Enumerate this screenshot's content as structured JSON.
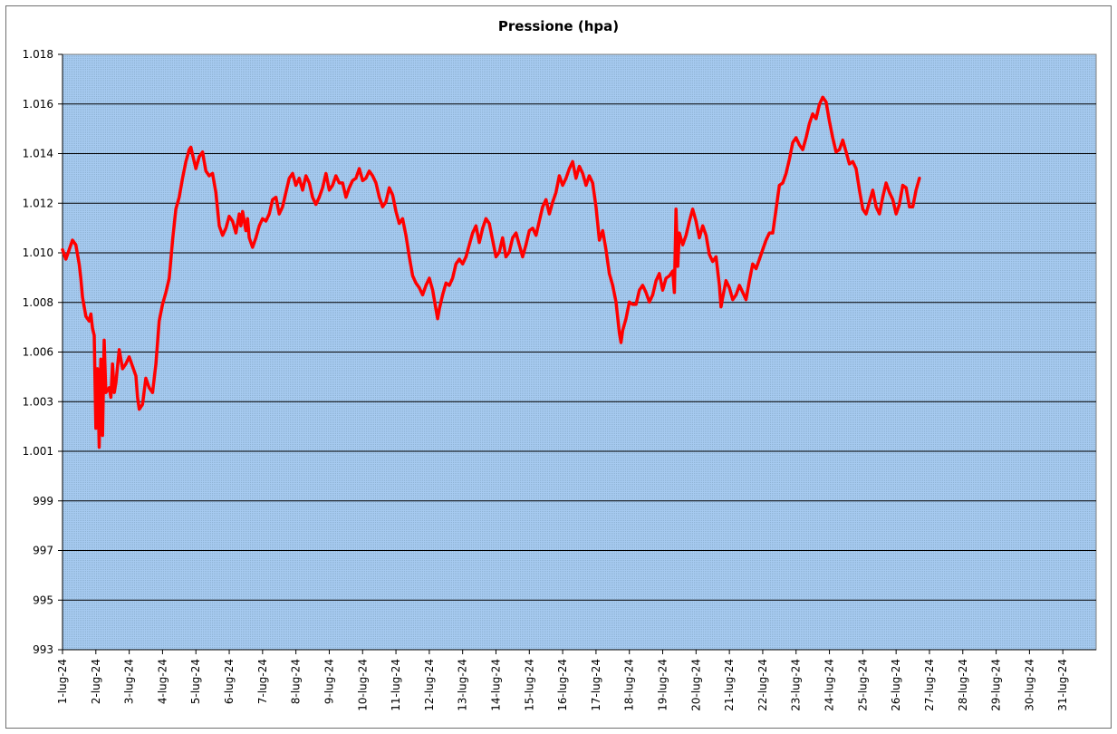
{
  "chart_data": {
    "type": "line",
    "title": "Pressione (hpa)",
    "xlabel": "",
    "ylabel": "",
    "ylim": [
      993,
      1018
    ],
    "y_ticks": [
      "993",
      "995",
      "997",
      "999",
      "1.001",
      "1.003",
      "1.006",
      "1.008",
      "1.010",
      "1.012",
      "1.014",
      "1.016",
      "1.018"
    ],
    "x_ticks": [
      "1-lug-24",
      "2-lug-24",
      "3-lug-24",
      "4-lug-24",
      "5-lug-24",
      "6-lug-24",
      "7-lug-24",
      "8-lug-24",
      "9-lug-24",
      "10-lug-24",
      "11-lug-24",
      "12-lug-24",
      "13-lug-24",
      "14-lug-24",
      "15-lug-24",
      "16-lug-24",
      "17-lug-24",
      "18-lug-24",
      "19-lug-24",
      "20-lug-24",
      "21-lug-24",
      "22-lug-24",
      "23-lug-24",
      "24-lug-24",
      "25-lug-24",
      "26-lug-24",
      "27-lug-24",
      "28-lug-24",
      "29-lug-24",
      "30-lug-24",
      "31-lug-24"
    ],
    "x_range_days": [
      0,
      31
    ],
    "grid": true,
    "legend": "none",
    "colors": {
      "line": "#ff0000",
      "plot_bg": "#a6caf0",
      "grid": "#000000"
    },
    "series": [
      {
        "values": [
          [
            0.0,
            1009.8
          ],
          [
            0.1,
            1009.4
          ],
          [
            0.2,
            1009.8
          ],
          [
            0.3,
            1010.2
          ],
          [
            0.4,
            1010.0
          ],
          [
            0.5,
            1009.2
          ],
          [
            0.55,
            1008.6
          ],
          [
            0.6,
            1007.8
          ],
          [
            0.7,
            1007.0
          ],
          [
            0.8,
            1006.8
          ],
          [
            0.85,
            1007.1
          ],
          [
            0.9,
            1006.5
          ],
          [
            0.95,
            1006.2
          ],
          [
            1.0,
            1002.3
          ],
          [
            1.05,
            1004.8
          ],
          [
            1.1,
            1001.5
          ],
          [
            1.15,
            1005.2
          ],
          [
            1.2,
            1002.0
          ],
          [
            1.25,
            1006.0
          ],
          [
            1.3,
            1003.8
          ],
          [
            1.4,
            1004.0
          ],
          [
            1.45,
            1003.6
          ],
          [
            1.5,
            1005.0
          ],
          [
            1.55,
            1003.8
          ],
          [
            1.6,
            1004.2
          ],
          [
            1.7,
            1005.6
          ],
          [
            1.8,
            1004.8
          ],
          [
            1.9,
            1005.0
          ],
          [
            2.0,
            1005.3
          ],
          [
            2.1,
            1004.9
          ],
          [
            2.2,
            1004.5
          ],
          [
            2.25,
            1003.6
          ],
          [
            2.3,
            1003.1
          ],
          [
            2.4,
            1003.3
          ],
          [
            2.5,
            1004.4
          ],
          [
            2.6,
            1004.0
          ],
          [
            2.7,
            1003.8
          ],
          [
            2.8,
            1005.0
          ],
          [
            2.9,
            1006.8
          ],
          [
            3.0,
            1007.5
          ],
          [
            3.1,
            1008.0
          ],
          [
            3.2,
            1008.6
          ],
          [
            3.3,
            1010.2
          ],
          [
            3.4,
            1011.5
          ],
          [
            3.5,
            1012.0
          ],
          [
            3.6,
            1012.8
          ],
          [
            3.7,
            1013.5
          ],
          [
            3.8,
            1014.0
          ],
          [
            3.85,
            1014.1
          ],
          [
            3.9,
            1013.8
          ],
          [
            4.0,
            1013.2
          ],
          [
            4.1,
            1013.7
          ],
          [
            4.2,
            1013.9
          ],
          [
            4.25,
            1013.5
          ],
          [
            4.3,
            1013.1
          ],
          [
            4.4,
            1012.9
          ],
          [
            4.5,
            1013.0
          ],
          [
            4.6,
            1012.2
          ],
          [
            4.7,
            1010.8
          ],
          [
            4.8,
            1010.4
          ],
          [
            4.9,
            1010.7
          ],
          [
            5.0,
            1011.2
          ],
          [
            5.1,
            1011.0
          ],
          [
            5.2,
            1010.5
          ],
          [
            5.3,
            1011.3
          ],
          [
            5.35,
            1010.8
          ],
          [
            5.4,
            1011.4
          ],
          [
            5.5,
            1010.6
          ],
          [
            5.55,
            1011.1
          ],
          [
            5.6,
            1010.3
          ],
          [
            5.7,
            1009.9
          ],
          [
            5.8,
            1010.3
          ],
          [
            5.9,
            1010.8
          ],
          [
            6.0,
            1011.1
          ],
          [
            6.1,
            1011.0
          ],
          [
            6.2,
            1011.3
          ],
          [
            6.3,
            1011.9
          ],
          [
            6.4,
            1012.0
          ],
          [
            6.5,
            1011.3
          ],
          [
            6.6,
            1011.6
          ],
          [
            6.7,
            1012.2
          ],
          [
            6.8,
            1012.8
          ],
          [
            6.9,
            1013.0
          ],
          [
            7.0,
            1012.5
          ],
          [
            7.1,
            1012.8
          ],
          [
            7.2,
            1012.3
          ],
          [
            7.3,
            1012.9
          ],
          [
            7.4,
            1012.6
          ],
          [
            7.5,
            1012.0
          ],
          [
            7.6,
            1011.7
          ],
          [
            7.7,
            1012.0
          ],
          [
            7.8,
            1012.4
          ],
          [
            7.9,
            1013.0
          ],
          [
            8.0,
            1012.3
          ],
          [
            8.1,
            1012.5
          ],
          [
            8.2,
            1012.9
          ],
          [
            8.3,
            1012.6
          ],
          [
            8.4,
            1012.6
          ],
          [
            8.5,
            1012.0
          ],
          [
            8.6,
            1012.4
          ],
          [
            8.7,
            1012.7
          ],
          [
            8.8,
            1012.8
          ],
          [
            8.9,
            1013.2
          ],
          [
            9.0,
            1012.7
          ],
          [
            9.1,
            1012.8
          ],
          [
            9.2,
            1013.1
          ],
          [
            9.3,
            1012.9
          ],
          [
            9.4,
            1012.6
          ],
          [
            9.5,
            1012.0
          ],
          [
            9.6,
            1011.6
          ],
          [
            9.7,
            1011.8
          ],
          [
            9.8,
            1012.4
          ],
          [
            9.9,
            1012.1
          ],
          [
            10.0,
            1011.4
          ],
          [
            10.1,
            1010.9
          ],
          [
            10.2,
            1011.1
          ],
          [
            10.3,
            1010.4
          ],
          [
            10.4,
            1009.5
          ],
          [
            10.5,
            1008.7
          ],
          [
            10.6,
            1008.4
          ],
          [
            10.7,
            1008.2
          ],
          [
            10.8,
            1007.9
          ],
          [
            10.9,
            1008.3
          ],
          [
            11.0,
            1008.6
          ],
          [
            11.1,
            1008.1
          ],
          [
            11.2,
            1007.3
          ],
          [
            11.25,
            1006.9
          ],
          [
            11.3,
            1007.3
          ],
          [
            11.4,
            1007.9
          ],
          [
            11.5,
            1008.4
          ],
          [
            11.6,
            1008.3
          ],
          [
            11.7,
            1008.6
          ],
          [
            11.8,
            1009.2
          ],
          [
            11.9,
            1009.4
          ],
          [
            12.0,
            1009.2
          ],
          [
            12.1,
            1009.5
          ],
          [
            12.2,
            1010.0
          ],
          [
            12.3,
            1010.5
          ],
          [
            12.4,
            1010.8
          ],
          [
            12.5,
            1010.1
          ],
          [
            12.6,
            1010.7
          ],
          [
            12.7,
            1011.1
          ],
          [
            12.8,
            1010.9
          ],
          [
            12.9,
            1010.2
          ],
          [
            13.0,
            1009.5
          ],
          [
            13.1,
            1009.7
          ],
          [
            13.2,
            1010.3
          ],
          [
            13.3,
            1009.5
          ],
          [
            13.4,
            1009.7
          ],
          [
            13.5,
            1010.3
          ],
          [
            13.6,
            1010.5
          ],
          [
            13.7,
            1010.0
          ],
          [
            13.8,
            1009.5
          ],
          [
            13.9,
            1010.0
          ],
          [
            14.0,
            1010.6
          ],
          [
            14.1,
            1010.7
          ],
          [
            14.2,
            1010.4
          ],
          [
            14.3,
            1011.0
          ],
          [
            14.4,
            1011.6
          ],
          [
            14.5,
            1011.9
          ],
          [
            14.6,
            1011.3
          ],
          [
            14.7,
            1011.8
          ],
          [
            14.8,
            1012.2
          ],
          [
            14.9,
            1012.9
          ],
          [
            15.0,
            1012.5
          ],
          [
            15.1,
            1012.8
          ],
          [
            15.2,
            1013.2
          ],
          [
            15.3,
            1013.5
          ],
          [
            15.4,
            1012.8
          ],
          [
            15.5,
            1013.3
          ],
          [
            15.6,
            1013.0
          ],
          [
            15.7,
            1012.5
          ],
          [
            15.8,
            1012.9
          ],
          [
            15.9,
            1012.6
          ],
          [
            16.0,
            1011.6
          ],
          [
            16.1,
            1010.2
          ],
          [
            16.2,
            1010.6
          ],
          [
            16.3,
            1009.8
          ],
          [
            16.4,
            1008.8
          ],
          [
            16.5,
            1008.3
          ],
          [
            16.6,
            1007.6
          ],
          [
            16.7,
            1006.3
          ],
          [
            16.75,
            1005.9
          ],
          [
            16.8,
            1006.4
          ],
          [
            16.9,
            1006.9
          ],
          [
            17.0,
            1007.6
          ],
          [
            17.1,
            1007.5
          ],
          [
            17.2,
            1007.5
          ],
          [
            17.3,
            1008.1
          ],
          [
            17.4,
            1008.3
          ],
          [
            17.5,
            1008.0
          ],
          [
            17.6,
            1007.6
          ],
          [
            17.7,
            1007.9
          ],
          [
            17.8,
            1008.5
          ],
          [
            17.9,
            1008.8
          ],
          [
            18.0,
            1008.1
          ],
          [
            18.1,
            1008.6
          ],
          [
            18.2,
            1008.7
          ],
          [
            18.3,
            1008.9
          ],
          [
            18.35,
            1008.0
          ],
          [
            18.4,
            1011.5
          ],
          [
            18.45,
            1009.1
          ],
          [
            18.5,
            1010.5
          ],
          [
            18.6,
            1010.0
          ],
          [
            18.7,
            1010.4
          ],
          [
            18.8,
            1011.0
          ],
          [
            18.9,
            1011.5
          ],
          [
            19.0,
            1011.0
          ],
          [
            19.1,
            1010.3
          ],
          [
            19.2,
            1010.8
          ],
          [
            19.3,
            1010.4
          ],
          [
            19.4,
            1009.6
          ],
          [
            19.5,
            1009.3
          ],
          [
            19.6,
            1009.5
          ],
          [
            19.7,
            1008.3
          ],
          [
            19.75,
            1007.4
          ],
          [
            19.8,
            1007.8
          ],
          [
            19.9,
            1008.5
          ],
          [
            20.0,
            1008.2
          ],
          [
            20.1,
            1007.7
          ],
          [
            20.2,
            1007.9
          ],
          [
            20.3,
            1008.3
          ],
          [
            20.4,
            1008.0
          ],
          [
            20.5,
            1007.7
          ],
          [
            20.6,
            1008.5
          ],
          [
            20.7,
            1009.2
          ],
          [
            20.8,
            1009.0
          ],
          [
            20.9,
            1009.4
          ],
          [
            21.0,
            1009.8
          ],
          [
            21.1,
            1010.2
          ],
          [
            21.2,
            1010.5
          ],
          [
            21.3,
            1010.5
          ],
          [
            21.4,
            1011.5
          ],
          [
            21.5,
            1012.5
          ],
          [
            21.6,
            1012.6
          ],
          [
            21.7,
            1013.0
          ],
          [
            21.8,
            1013.6
          ],
          [
            21.9,
            1014.3
          ],
          [
            22.0,
            1014.5
          ],
          [
            22.1,
            1014.2
          ],
          [
            22.2,
            1014.0
          ],
          [
            22.3,
            1014.5
          ],
          [
            22.4,
            1015.1
          ],
          [
            22.5,
            1015.5
          ],
          [
            22.6,
            1015.3
          ],
          [
            22.7,
            1015.9
          ],
          [
            22.8,
            1016.2
          ],
          [
            22.9,
            1016.0
          ],
          [
            23.0,
            1015.2
          ],
          [
            23.1,
            1014.5
          ],
          [
            23.2,
            1013.9
          ],
          [
            23.3,
            1014.0
          ],
          [
            23.4,
            1014.4
          ],
          [
            23.5,
            1013.9
          ],
          [
            23.6,
            1013.4
          ],
          [
            23.7,
            1013.5
          ],
          [
            23.8,
            1013.2
          ],
          [
            23.9,
            1012.3
          ],
          [
            24.0,
            1011.5
          ],
          [
            24.1,
            1011.3
          ],
          [
            24.2,
            1011.8
          ],
          [
            24.3,
            1012.3
          ],
          [
            24.4,
            1011.6
          ],
          [
            24.5,
            1011.3
          ],
          [
            24.6,
            1012.0
          ],
          [
            24.7,
            1012.6
          ],
          [
            24.8,
            1012.2
          ],
          [
            24.9,
            1011.9
          ],
          [
            25.0,
            1011.3
          ],
          [
            25.1,
            1011.7
          ],
          [
            25.2,
            1012.5
          ],
          [
            25.3,
            1012.4
          ],
          [
            25.4,
            1011.6
          ],
          [
            25.5,
            1011.6
          ],
          [
            25.6,
            1012.3
          ],
          [
            25.7,
            1012.8
          ]
        ]
      }
    ]
  }
}
